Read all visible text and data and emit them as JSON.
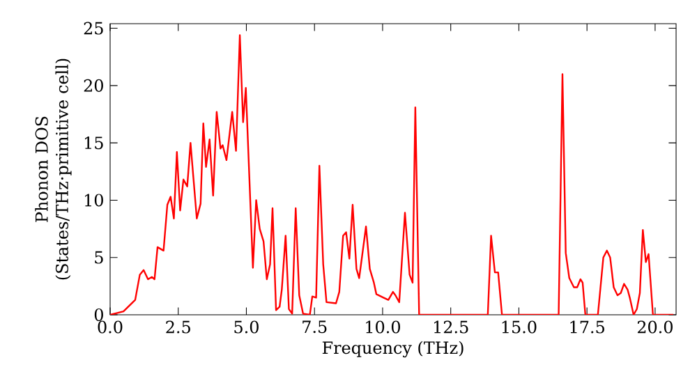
{
  "chart_data": {
    "type": "line",
    "xlabel": "Frequency (THz)",
    "ylabel": "Phonon DOS (States/THz·primitive cell)",
    "xlim": [
      0,
      20.77
    ],
    "ylim": [
      0,
      25.4
    ],
    "xticks": [
      {
        "value": 0,
        "label": "0.0"
      },
      {
        "value": 2.5,
        "label": "2.5"
      },
      {
        "value": 5,
        "label": "5.0"
      },
      {
        "value": 7.5,
        "label": "7.5"
      },
      {
        "value": 10,
        "label": "10.0"
      },
      {
        "value": 12.5,
        "label": "12.5"
      },
      {
        "value": 15,
        "label": "15.0"
      },
      {
        "value": 17.5,
        "label": "17.5"
      },
      {
        "value": 20,
        "label": "20.0"
      }
    ],
    "yticks": [
      0,
      5,
      10,
      15,
      20,
      25
    ],
    "x": [
      0,
      0.49,
      0.92,
      1.09,
      1.23,
      1.39,
      1.53,
      1.63,
      1.74,
      1.96,
      2.1,
      2.22,
      2.34,
      2.45,
      2.57,
      2.69,
      2.83,
      2.95,
      3.18,
      3.32,
      3.42,
      3.52,
      3.65,
      3.78,
      3.91,
      4.05,
      4.13,
      4.27,
      4.48,
      4.62,
      4.76,
      4.88,
      4.98,
      5.24,
      5.36,
      5.49,
      5.63,
      5.75,
      5.87,
      5.96,
      6.09,
      6.22,
      6.3,
      6.44,
      6.56,
      6.68,
      6.81,
      6.94,
      7.08,
      7.33,
      7.42,
      7.56,
      7.68,
      7.82,
      7.94,
      8.29,
      8.41,
      8.55,
      8.66,
      8.78,
      8.9,
      9.04,
      9.14,
      9.39,
      9.53,
      9.68,
      9.77,
      10.03,
      10.21,
      10.38,
      10.47,
      10.61,
      10.82,
      10.99,
      11.1,
      11.2,
      11.34,
      13.86,
      13.98,
      14.12,
      14.24,
      14.38,
      16.46,
      16.6,
      16.72,
      16.85,
      17.02,
      17.14,
      17.26,
      17.34,
      17.44,
      17.9,
      18.1,
      18.23,
      18.35,
      18.48,
      18.62,
      18.74,
      18.86,
      18.99,
      19.07,
      19.21,
      19.33,
      19.44,
      19.55,
      19.66,
      19.76,
      19.92,
      20.67
    ],
    "series": [
      {
        "color": "#ff0000",
        "values": [
          0,
          0.3,
          1.3,
          3.5,
          3.9,
          3.1,
          3.3,
          3.1,
          5.9,
          5.6,
          9.6,
          10.3,
          8.4,
          14.2,
          9.1,
          11.8,
          11.2,
          15.0,
          8.4,
          9.7,
          16.7,
          12.9,
          15.3,
          10.4,
          17.7,
          14.5,
          14.8,
          13.5,
          17.7,
          14.3,
          24.4,
          16.8,
          19.8,
          4.1,
          10.0,
          7.5,
          6.4,
          3.1,
          4.4,
          9.3,
          0.4,
          0.7,
          2.2,
          6.9,
          0.5,
          0.1,
          9.3,
          1.7,
          0.1,
          0,
          1.6,
          1.5,
          13.0,
          4.4,
          1.1,
          1.0,
          2.0,
          6.9,
          7.2,
          4.9,
          9.6,
          4.0,
          3.2,
          7.7,
          4.0,
          2.8,
          1.8,
          1.5,
          1.3,
          2.0,
          1.7,
          1.1,
          8.9,
          3.5,
          2.8,
          18.1,
          0,
          0,
          6.9,
          3.7,
          3.7,
          0,
          0,
          21.0,
          5.4,
          3.2,
          2.4,
          2.4,
          3.1,
          2.8,
          0,
          0,
          5.0,
          5.6,
          5.0,
          2.4,
          1.7,
          1.9,
          2.7,
          2.2,
          1.5,
          0,
          0.5,
          1.9,
          7.4,
          4.6,
          5.3,
          0,
          0
        ]
      }
    ],
    "marker": "none",
    "line_style": "solid"
  }
}
